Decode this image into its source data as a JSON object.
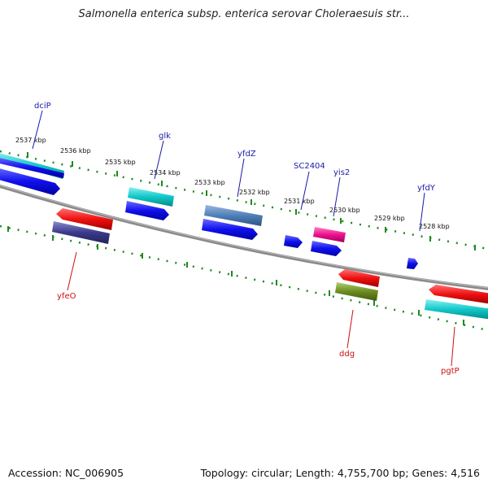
{
  "title": "Salmonella enterica subsp. enterica serovar Choleraesuis str...",
  "footer": {
    "accession": "Accession: NC_006905",
    "summary": "Topology: circular; Length: 4,755,700 bp; Genes: 4,516"
  },
  "scale_labels": [
    "2537 kbp",
    "2536 kbp",
    "2535 kbp",
    "2534 kbp",
    "2533 kbp",
    "2532 kbp",
    "2531 kbp",
    "2530 kbp",
    "2529 kbp",
    "2528 kbp"
  ],
  "genes_top": [
    {
      "name": "dciP"
    },
    {
      "name": "glk"
    },
    {
      "name": "yfdZ"
    },
    {
      "name": "SC2404"
    },
    {
      "name": "yis2"
    },
    {
      "name": "yfdY"
    }
  ],
  "genes_bottom": [
    {
      "name": "yfeO"
    },
    {
      "name": "ddg"
    },
    {
      "name": "pgtP"
    }
  ],
  "colors": {
    "forward_label": "#1a1aaa",
    "reverse_label": "#cc1111",
    "backbone": "#8a8a8a",
    "tick": "#1f8a1f",
    "blue": "#1010ee",
    "cyan": "#10c8c8",
    "red": "#ee1010",
    "steel_blue": "#4f7fb8",
    "magenta": "#ee1090",
    "navy": "#3a3a8a",
    "olive": "#6b8c1f"
  }
}
